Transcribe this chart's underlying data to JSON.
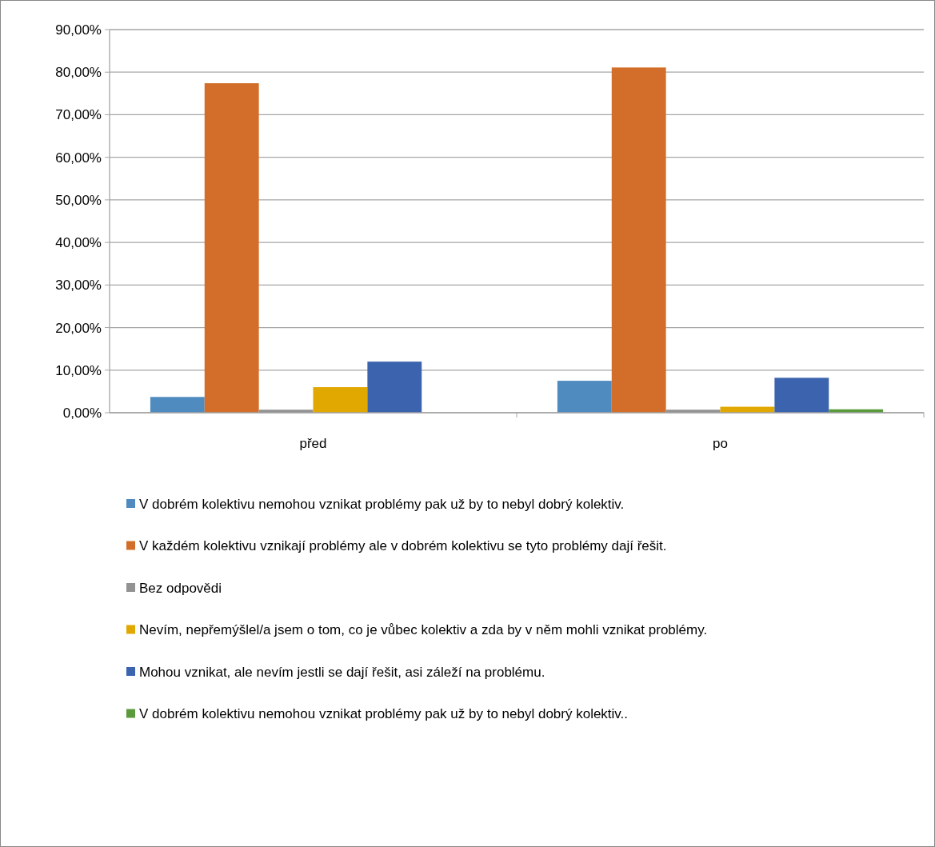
{
  "chart_data": {
    "type": "bar",
    "categories": [
      "před",
      "po"
    ],
    "series": [
      {
        "name": "V dobrém kolektivu nemohou vznikat problémy pak už by to nebyl dobrý kolektiv.",
        "color": "#4f8bbf",
        "values": [
          3.7,
          7.5
        ]
      },
      {
        "name": "V každém kolektivu vznikají problémy ale v dobrém kolektivu se tyto problémy dají řešit.",
        "color": "#d36e2a",
        "values": [
          77.4,
          81.1
        ]
      },
      {
        "name": "Bez odpovědi",
        "color": "#929292",
        "values": [
          0.7,
          0.7
        ]
      },
      {
        "name": "Nevím, nepřemýšlel/a jsem o tom, co je vůbec kolektiv a zda by v něm mohli vznikat problémy.",
        "color": "#e0a800",
        "values": [
          6.0,
          1.4
        ]
      },
      {
        "name": "Mohou vznikat, ale nevím jestli se dají řešit, asi záleží na problému.",
        "color": "#3c64ae",
        "values": [
          12.0,
          8.2
        ]
      },
      {
        "name": "V dobrém kolektivu nemohou vznikat problémy pak už by to nebyl dobrý kolektiv..",
        "color": "#5a9a3c",
        "values": [
          null,
          0.8
        ]
      }
    ],
    "ylim": [
      0,
      90
    ],
    "yticks": [
      {
        "value": 0,
        "label": "0,00%"
      },
      {
        "value": 10,
        "label": "10,00%"
      },
      {
        "value": 20,
        "label": "20,00%"
      },
      {
        "value": 30,
        "label": "30,00%"
      },
      {
        "value": 40,
        "label": "40,00%"
      },
      {
        "value": 50,
        "label": "50,00%"
      },
      {
        "value": 60,
        "label": "60,00%"
      },
      {
        "value": 70,
        "label": "70,00%"
      },
      {
        "value": 80,
        "label": "80,00%"
      },
      {
        "value": 90,
        "label": "90,00%"
      }
    ],
    "grid": "y",
    "legend": "bottom"
  }
}
